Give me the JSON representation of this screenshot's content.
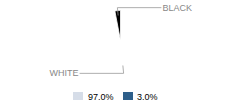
{
  "chart_data": {
    "type": "pie",
    "categories": [
      "WHITE",
      "BLACK"
    ],
    "values": [
      97.0,
      3.0
    ],
    "value_labels": [
      "97.0%",
      "3.0%"
    ],
    "colors": [
      "#d6dde8",
      "#2e5f8a"
    ],
    "legend": "bottom"
  }
}
